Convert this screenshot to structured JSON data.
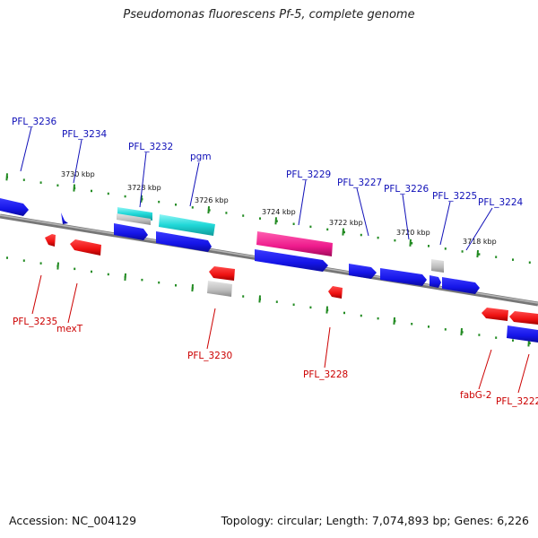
{
  "title": "Pseudomonas fluorescens Pf-5, complete genome",
  "footer": {
    "accession": "Accession: NC_004129",
    "topology": "Topology: circular; Length: 7,074,893 bp; Genes: 6,226"
  },
  "colors": {
    "forward_label": "#1010b8",
    "reverse_label": "#cc0000",
    "backbone": "#8a8a8a",
    "tick": "#228b22",
    "blue_gene": "#1515e8",
    "red_gene": "#ee1111",
    "cyan_gene": "#20d8d8",
    "magenta_gene": "#ee1a8c",
    "grey_gene": "#bcbcbc"
  },
  "kbp_markers": [
    "3730 kbp",
    "3728 kbp",
    "3726 kbp",
    "3724 kbp",
    "3722 kbp",
    "3720 kbp",
    "3718 kbp"
  ],
  "forward_labels": [
    "PFL_3236",
    "PFL_3234",
    "PFL_3232",
    "pgm",
    "PFL_3229",
    "PFL_3227",
    "PFL_3226",
    "PFL_3225",
    "PFL_3224"
  ],
  "reverse_labels": [
    "PFL_3235",
    "mexT",
    "PFL_3230",
    "PFL_3228",
    "fabG-2",
    "PFL_3222"
  ]
}
